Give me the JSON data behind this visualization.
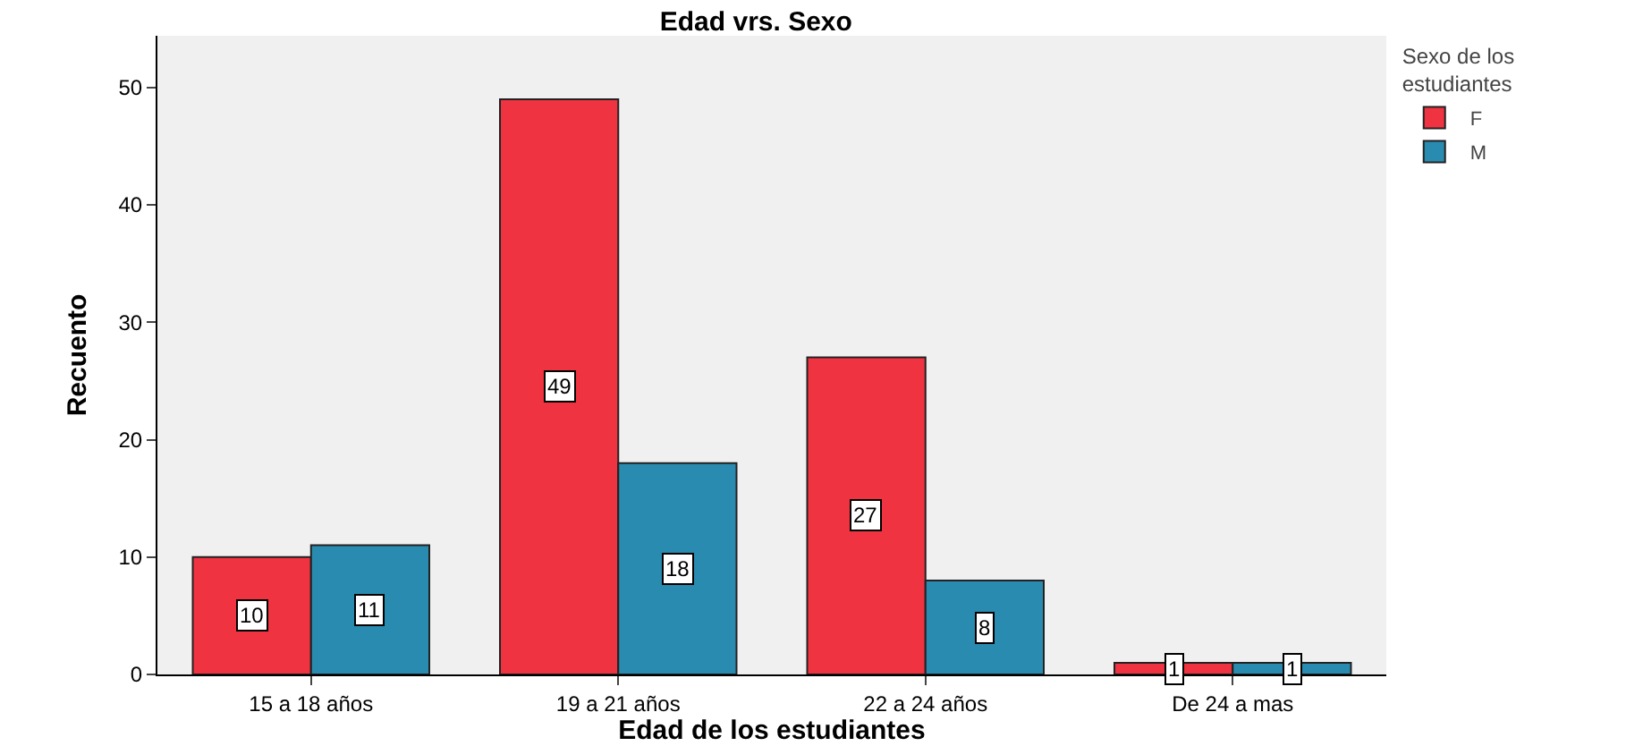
{
  "chart_data": {
    "type": "bar",
    "title": "Edad vrs. Sexo",
    "xlabel": "Edad de los estudiantes",
    "ylabel": "Recuento",
    "legend_title": "Sexo de los estudiantes",
    "categories": [
      "15 a 18 años",
      "19 a 21 años",
      "22 a 24 años",
      "De 24 a mas"
    ],
    "series": [
      {
        "name": "F",
        "color": "#ef3340",
        "values": [
          10,
          49,
          27,
          1
        ]
      },
      {
        "name": "M",
        "color": "#2a8bb0",
        "values": [
          11,
          18,
          8,
          1
        ]
      }
    ],
    "ylim": [
      0,
      54.4
    ],
    "yticks": [
      0,
      10,
      20,
      30,
      40,
      50
    ],
    "grid": false,
    "legend": "top right",
    "data_labels": true
  }
}
